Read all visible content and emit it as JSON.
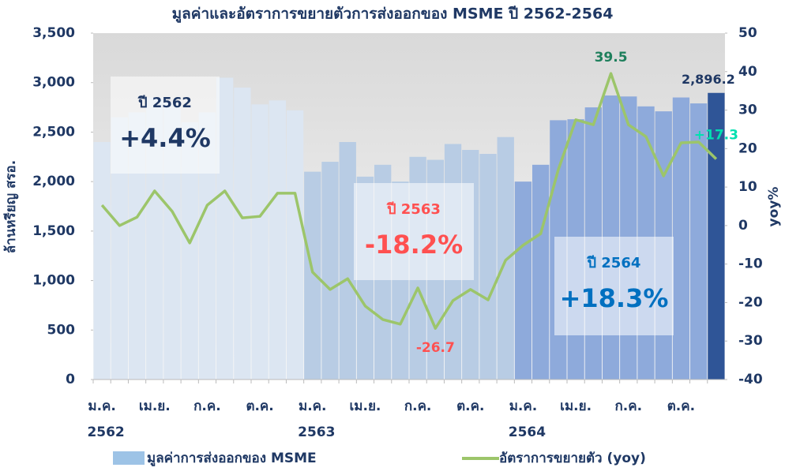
{
  "chart_data": {
    "type": "bar_line",
    "title": "มูลค่าและอัตราการขยายตัวการส่งออกของ  MSME ปี 2562-2564",
    "ylabel": "ล้านหรียญ สรอ.",
    "y2label": "yoy%",
    "categories": [
      "ม.ค.",
      null,
      null,
      "เม.ย.",
      null,
      null,
      "ก.ค.",
      null,
      null,
      "ต.ค.",
      null,
      null,
      "ม.ค.",
      null,
      null,
      "เม.ย.",
      null,
      null,
      "ก.ค.",
      null,
      null,
      "ต.ค.",
      null,
      null,
      "ม.ค.",
      null,
      null,
      "เม.ย.",
      null,
      null,
      "ก.ค.",
      null,
      null,
      "ต.ค.",
      null,
      null
    ],
    "years": [
      "2562",
      "2563",
      "2564"
    ],
    "series": [
      {
        "name": "มูลค่าการส่งออกของ MSME",
        "type": "bar",
        "color": "#9dc3e6",
        "colors": [
          "#dce6f2",
          "#dce6f2",
          "#dce6f2",
          "#dce6f2",
          "#dce6f2",
          "#dce6f2",
          "#dce6f2",
          "#dce6f2",
          "#dce6f2",
          "#dce6f2",
          "#dce6f2",
          "#dce6f2",
          "#b8cce4",
          "#b8cce4",
          "#b8cce4",
          "#b8cce4",
          "#b8cce4",
          "#b8cce4",
          "#b8cce4",
          "#b8cce4",
          "#b8cce4",
          "#b8cce4",
          "#b8cce4",
          "#b8cce4",
          "#8eaadb",
          "#8eaadb",
          "#8eaadb",
          "#8eaadb",
          "#8eaadb",
          "#8eaadb",
          "#8eaadb",
          "#8eaadb",
          "#8eaadb",
          "#8eaadb",
          "#8eaadb",
          "#2f5597"
        ],
        "values": [
          2400,
          2650,
          2700,
          2850,
          2800,
          2600,
          2700,
          3050,
          2950,
          2780,
          2820,
          2720,
          2100,
          2200,
          2400,
          2050,
          2170,
          2000,
          2250,
          2220,
          2380,
          2320,
          2280,
          2450,
          2000,
          2170,
          2620,
          2630,
          2750,
          2870,
          2860,
          2760,
          2710,
          2850,
          2790,
          2896.2
        ],
        "value_labels": [
          null,
          null,
          null,
          null,
          null,
          null,
          null,
          null,
          null,
          null,
          null,
          null,
          null,
          null,
          null,
          null,
          null,
          null,
          null,
          null,
          null,
          null,
          null,
          null,
          null,
          null,
          null,
          null,
          null,
          null,
          null,
          null,
          null,
          null,
          null,
          "2,896.2"
        ]
      },
      {
        "name": "อัตราการขยายตัว (yoy)",
        "type": "line",
        "axis": "y2",
        "color": "#9cc56a",
        "values": [
          5.3,
          0,
          2.2,
          9,
          3.7,
          -4.5,
          5.3,
          9,
          2,
          2.4,
          8.4,
          8.4,
          -12.1,
          -16.6,
          -13.8,
          -20.9,
          -24.4,
          -25.6,
          -16.2,
          -26.7,
          -19.5,
          -16.6,
          -19.3,
          -9,
          -5.1,
          -2.1,
          14.5,
          27.5,
          26.2,
          39.5,
          26.2,
          23.1,
          12.9,
          21.5,
          21.7,
          17.3
        ],
        "value_labels": [
          null,
          null,
          null,
          null,
          null,
          null,
          null,
          null,
          null,
          null,
          null,
          null,
          null,
          null,
          null,
          null,
          null,
          null,
          null,
          "-26.7",
          null,
          null,
          null,
          null,
          null,
          null,
          null,
          null,
          null,
          "39.5",
          null,
          null,
          null,
          null,
          null,
          "+17.3"
        ]
      }
    ],
    "ylim": [
      0,
      3500
    ],
    "yticks": [
      0,
      500,
      {
        "value": 1000,
        "label": "1,000"
      },
      {
        "value": 1500,
        "label": "1,500"
      },
      {
        "value": 2000,
        "label": "2,000"
      },
      {
        "value": 2500,
        "label": "2,500"
      },
      {
        "value": 3000,
        "label": "3,000"
      },
      {
        "value": 3500,
        "label": "3,500"
      }
    ],
    "y2lim": [
      -40,
      50
    ],
    "y2ticks": [
      -40,
      -30,
      -20,
      -10,
      0,
      10,
      20,
      30,
      40,
      50
    ],
    "annotations": [
      {
        "year": "ปี 2562",
        "growth": "+4.4%",
        "color": "#1f3864"
      },
      {
        "year": "ปี 2563",
        "growth": "-18.2%",
        "color": "#ff5050"
      },
      {
        "year": "ปี 2564",
        "growth": "+18.3%",
        "color": "#0070c0"
      }
    ]
  }
}
